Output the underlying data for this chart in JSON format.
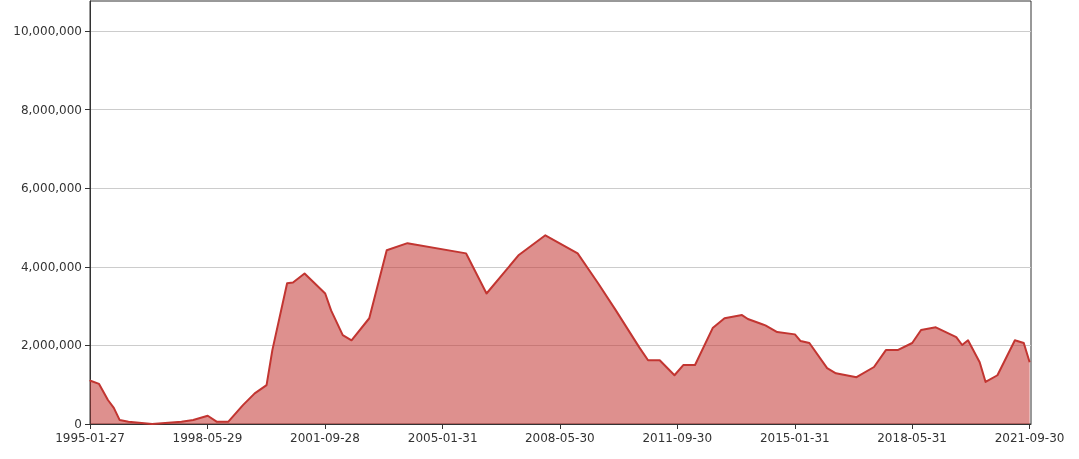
{
  "chart_data": {
    "type": "area",
    "x": [
      "1995-01-27",
      "1995-02",
      "1995-05",
      "1995-08",
      "1995-10",
      "1995-12",
      "1996-03",
      "1996-11",
      "1997-09",
      "1998-01",
      "1998-06",
      "1998-09",
      "1999-01",
      "1999-06",
      "1999-10",
      "2000-02",
      "2000-04",
      "2000-09",
      "2000-11",
      "2001-03",
      "2001-10",
      "2001-12",
      "2002-04",
      "2002-07",
      "2003-01",
      "2003-07",
      "2004-02",
      "2005-10",
      "2006-05",
      "2007-04",
      "2008-01",
      "2008-12",
      "2009-07",
      "2010-01",
      "2010-09",
      "2010-12",
      "2011-04",
      "2011-09",
      "2011-12",
      "2012-04",
      "2012-10",
      "2013-02",
      "2013-08",
      "2013-10",
      "2014-04",
      "2014-08",
      "2015-02",
      "2015-04",
      "2015-07",
      "2016-01",
      "2016-04",
      "2016-11",
      "2017-05",
      "2017-09",
      "2018-01",
      "2018-06",
      "2018-09",
      "2019-02",
      "2019-09",
      "2019-11",
      "2020-01",
      "2020-05",
      "2020-07",
      "2020-11",
      "2021-05",
      "2021-08",
      "2021-10"
    ],
    "series": [
      {
        "color": "#c23531",
        "values": [
          1120000,
          1100000,
          1020000,
          610000,
          410000,
          100000,
          60000,
          0,
          60000,
          100000,
          210000,
          60000,
          60000,
          480000,
          780000,
          990000,
          1880000,
          3580000,
          3600000,
          3830000,
          3320000,
          2890000,
          2260000,
          2130000,
          2690000,
          4420000,
          4600000,
          4340000,
          3320000,
          4300000,
          4800000,
          4340000,
          3580000,
          2890000,
          1950000,
          1620000,
          1620000,
          1240000,
          1500000,
          1500000,
          2440000,
          2690000,
          2770000,
          2670000,
          2510000,
          2340000,
          2280000,
          2110000,
          2060000,
          1420000,
          1290000,
          1190000,
          1450000,
          1880000,
          1880000,
          2060000,
          2390000,
          2460000,
          2210000,
          2010000,
          2130000,
          1570000,
          1070000,
          1240000,
          2130000,
          2060000,
          1570000
        ]
      }
    ],
    "xlim": [
      "1995-01-27",
      "2021-10-15"
    ],
    "xticks": [
      {
        "value": "1995-01-27",
        "label": "1995-01-27"
      },
      {
        "value": "1998-05-29",
        "label": "1998-05-29"
      },
      {
        "value": "2001-09-28",
        "label": "2001-09-28"
      },
      {
        "value": "2005-01-31",
        "label": "2005-01-31"
      },
      {
        "value": "2008-05-30",
        "label": "2008-05-30"
      },
      {
        "value": "2011-09-30",
        "label": "2011-09-30"
      },
      {
        "value": "2015-01-31",
        "label": "2015-01-31"
      },
      {
        "value": "2018-05-31",
        "label": "2018-05-31"
      },
      {
        "value": "2021-09-30",
        "label": "2021-09-30"
      }
    ],
    "ylim": [
      0,
      10760000
    ],
    "yticks": [
      0,
      {
        "value": 2000000,
        "label": "2,000,000"
      },
      {
        "value": 4000000,
        "label": "4,000,000"
      },
      {
        "value": 6000000,
        "label": "6,000,000"
      },
      {
        "value": 8000000,
        "label": "8,000,000"
      },
      {
        "value": 10000000,
        "label": "10,000,000"
      }
    ],
    "grid": "y",
    "marker": "none"
  }
}
